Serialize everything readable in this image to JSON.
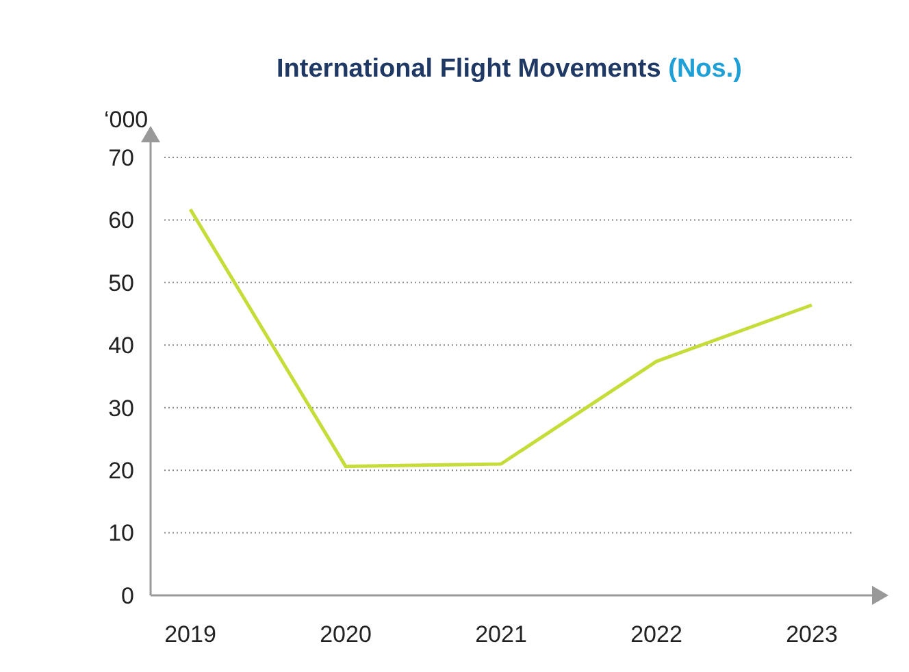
{
  "chart_data": {
    "type": "line",
    "title": "International Flight Movements (Nos.)",
    "ylabel": "‘000",
    "categories": [
      "2019",
      "2020",
      "2021",
      "2022",
      "2023"
    ],
    "series": [
      {
        "color": "#c5dc3a",
        "values": [
          61.7,
          20.6,
          21.0,
          37.4,
          46.4
        ]
      }
    ],
    "ylim": [
      0,
      70
    ],
    "yticks": [
      0,
      10,
      20,
      30,
      40,
      50,
      60,
      70
    ],
    "grid": "y",
    "marker": "none",
    "line_style": "solid"
  }
}
